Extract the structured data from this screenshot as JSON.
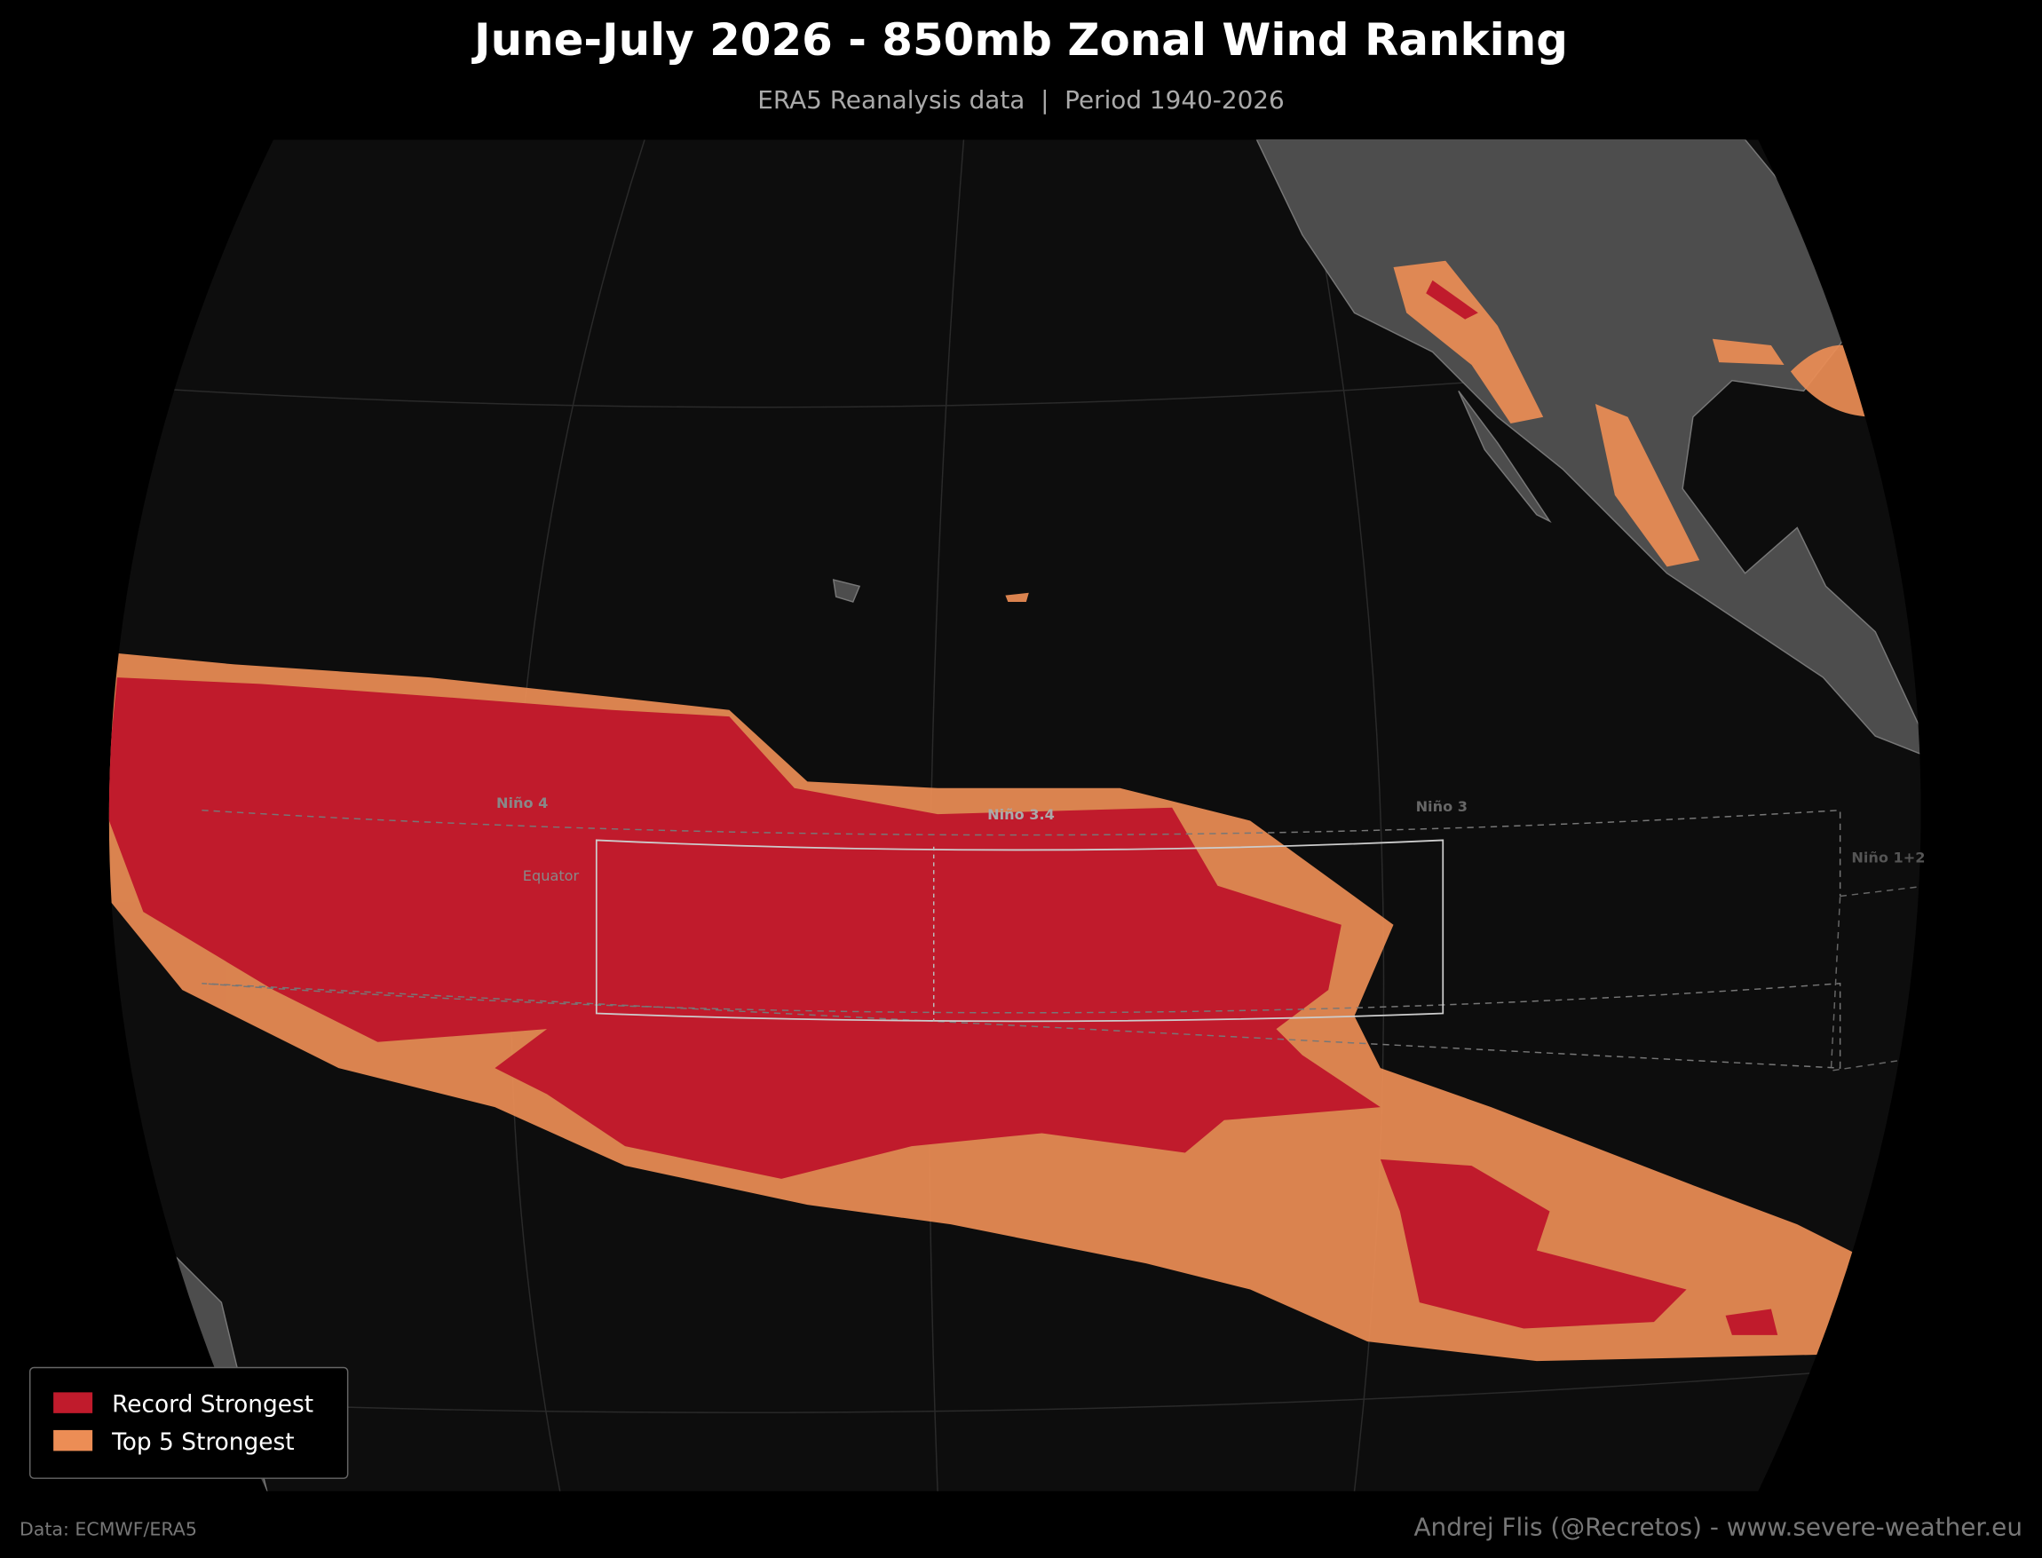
{
  "header": {
    "title": "June-July 2026 - 850mb Zonal Wind Ranking",
    "subtitle": "ERA5 Reanalysis data  |  Period 1940-2026"
  },
  "map_labels": {
    "nino4": "Niño 4",
    "nino34": "Niño 3.4",
    "nino3": "Niño 3",
    "nino12": "Niño 1+2",
    "equator": "Equator"
  },
  "legend": {
    "items": [
      {
        "label": "Record Strongest",
        "color": "#c01b2c"
      },
      {
        "label": "Top 5 Strongest",
        "color": "#ec8d55"
      }
    ]
  },
  "footer": {
    "source": "Data: ECMWF/ERA5",
    "credit": "Andrej Flis (@Recretos) - www.severe-weather.eu"
  }
}
